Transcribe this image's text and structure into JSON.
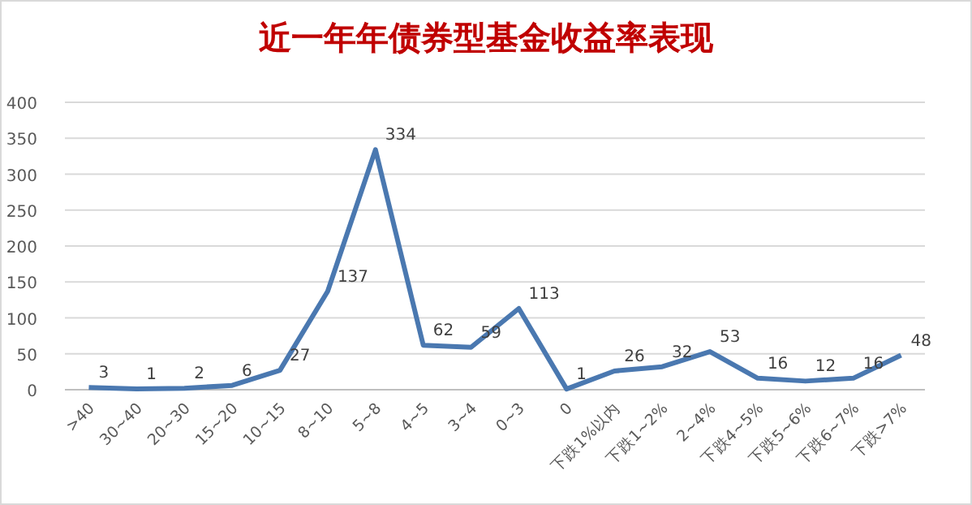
{
  "chart_data": {
    "type": "line",
    "title": "近一年年债券型基金收益率表现",
    "categories": [
      ">40",
      "30~40",
      "20~30",
      "15~20",
      "10~15",
      "8~10",
      "5~8",
      "4~5",
      "3~4",
      "0~3",
      "0",
      "下跌1%以内",
      "下跌1~2%",
      "2~4%",
      "下跌4~5%",
      "下跌5~6%",
      "下跌6~7%",
      "下跌>7%"
    ],
    "values": [
      3,
      1,
      2,
      6,
      27,
      137,
      334,
      62,
      59,
      113,
      1,
      26,
      32,
      53,
      16,
      12,
      16,
      48
    ],
    "color": "#4a78b0",
    "ylim": [
      0,
      400
    ],
    "yticks": [
      0,
      50,
      100,
      150,
      200,
      250,
      300,
      350,
      400
    ],
    "grid": "y",
    "data_labels": true,
    "marker": "none",
    "line_style": "solid"
  }
}
